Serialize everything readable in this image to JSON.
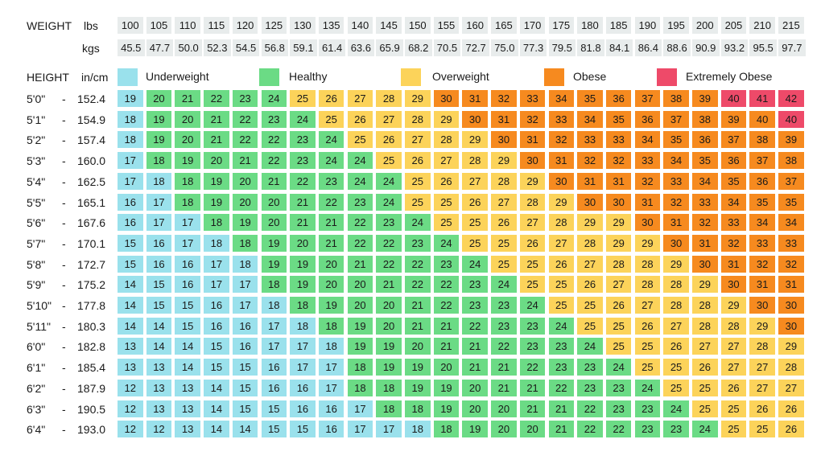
{
  "labels": {
    "weight": "WEIGHT",
    "lbs": "lbs",
    "kgs": "kgs",
    "height": "HEIGHT",
    "in_cm": "in/cm"
  },
  "colors": {
    "Underweight": "#9ae1ec",
    "Healthy": "#6bdb85",
    "Overweight": "#fcd35a",
    "Obese": "#f68a1f",
    "Extremely Obese": "#ee4a69",
    "header_bg": "#e8ecec"
  },
  "chart_data": {
    "type": "table",
    "weights_lbs": [
      "100",
      "105",
      "110",
      "115",
      "120",
      "125",
      "130",
      "135",
      "140",
      "145",
      "150",
      "155",
      "160",
      "165",
      "170",
      "175",
      "180",
      "185",
      "190",
      "195",
      "200",
      "205",
      "210",
      "215"
    ],
    "weights_kgs": [
      "45.5",
      "47.7",
      "50.0",
      "52.3",
      "54.5",
      "56.8",
      "59.1",
      "61.4",
      "63.6",
      "65.9",
      "68.2",
      "70.5",
      "72.7",
      "75.0",
      "77.3",
      "79.5",
      "81.8",
      "84.1",
      "86.4",
      "88.6",
      "90.9",
      "93.2",
      "95.5",
      "97.7"
    ],
    "legend": [
      "Underweight",
      "Healthy",
      "Overweight",
      "Obese",
      "Extremely Obese"
    ],
    "rows": [
      {
        "in": "5'0\"",
        "sep": "-",
        "cm": "152.4",
        "values": [
          19,
          20,
          21,
          22,
          23,
          24,
          25,
          26,
          27,
          28,
          29,
          30,
          31,
          32,
          33,
          34,
          35,
          36,
          37,
          38,
          39,
          40,
          41,
          42
        ],
        "classes": [
          "U",
          "H",
          "H",
          "H",
          "H",
          "H",
          "O",
          "O",
          "O",
          "O",
          "O",
          "B",
          "B",
          "B",
          "B",
          "B",
          "B",
          "B",
          "B",
          "B",
          "B",
          "E",
          "E",
          "E"
        ]
      },
      {
        "in": "5'1\"",
        "sep": "-",
        "cm": "154.9",
        "values": [
          18,
          19,
          20,
          21,
          22,
          23,
          24,
          25,
          26,
          27,
          28,
          29,
          30,
          31,
          32,
          33,
          34,
          35,
          36,
          37,
          38,
          39,
          40,
          40
        ],
        "classes": [
          "U",
          "H",
          "H",
          "H",
          "H",
          "H",
          "H",
          "O",
          "O",
          "O",
          "O",
          "O",
          "B",
          "B",
          "B",
          "B",
          "B",
          "B",
          "B",
          "B",
          "B",
          "B",
          "B",
          "E"
        ]
      },
      {
        "in": "5'2\"",
        "sep": "-",
        "cm": "157.4",
        "values": [
          18,
          19,
          20,
          21,
          22,
          22,
          23,
          24,
          25,
          26,
          27,
          28,
          29,
          30,
          31,
          32,
          33,
          33,
          34,
          35,
          36,
          37,
          38,
          39
        ],
        "classes": [
          "U",
          "H",
          "H",
          "H",
          "H",
          "H",
          "H",
          "H",
          "O",
          "O",
          "O",
          "O",
          "O",
          "B",
          "B",
          "B",
          "B",
          "B",
          "B",
          "B",
          "B",
          "B",
          "B",
          "B"
        ]
      },
      {
        "in": "5'3\"",
        "sep": "-",
        "cm": "160.0",
        "values": [
          17,
          18,
          19,
          20,
          21,
          22,
          23,
          24,
          24,
          25,
          26,
          27,
          28,
          29,
          30,
          31,
          32,
          32,
          33,
          34,
          35,
          36,
          37,
          38
        ],
        "classes": [
          "U",
          "H",
          "H",
          "H",
          "H",
          "H",
          "H",
          "H",
          "H",
          "O",
          "O",
          "O",
          "O",
          "O",
          "B",
          "B",
          "B",
          "B",
          "B",
          "B",
          "B",
          "B",
          "B",
          "B"
        ]
      },
      {
        "in": "5'4\"",
        "sep": "-",
        "cm": "162.5",
        "values": [
          17,
          18,
          18,
          19,
          20,
          21,
          22,
          23,
          24,
          24,
          25,
          26,
          27,
          28,
          29,
          30,
          31,
          31,
          32,
          33,
          34,
          35,
          36,
          37
        ],
        "classes": [
          "U",
          "U",
          "H",
          "H",
          "H",
          "H",
          "H",
          "H",
          "H",
          "H",
          "O",
          "O",
          "O",
          "O",
          "O",
          "B",
          "B",
          "B",
          "B",
          "B",
          "B",
          "B",
          "B",
          "B"
        ]
      },
      {
        "in": "5'5\"",
        "sep": "-",
        "cm": "165.1",
        "values": [
          16,
          17,
          18,
          19,
          20,
          20,
          21,
          22,
          23,
          24,
          25,
          25,
          26,
          27,
          28,
          29,
          30,
          30,
          31,
          32,
          33,
          34,
          35,
          35
        ],
        "classes": [
          "U",
          "U",
          "H",
          "H",
          "H",
          "H",
          "H",
          "H",
          "H",
          "H",
          "O",
          "O",
          "O",
          "O",
          "O",
          "O",
          "B",
          "B",
          "B",
          "B",
          "B",
          "B",
          "B",
          "B"
        ]
      },
      {
        "in": "5'6\"",
        "sep": "-",
        "cm": "167.6",
        "values": [
          16,
          17,
          17,
          18,
          19,
          20,
          21,
          21,
          22,
          23,
          24,
          25,
          25,
          26,
          27,
          28,
          29,
          29,
          30,
          31,
          32,
          33,
          34,
          34
        ],
        "classes": [
          "U",
          "U",
          "U",
          "H",
          "H",
          "H",
          "H",
          "H",
          "H",
          "H",
          "H",
          "O",
          "O",
          "O",
          "O",
          "O",
          "O",
          "O",
          "B",
          "B",
          "B",
          "B",
          "B",
          "B"
        ]
      },
      {
        "in": "5'7\"",
        "sep": "-",
        "cm": "170.1",
        "values": [
          15,
          16,
          17,
          18,
          18,
          19,
          20,
          21,
          22,
          22,
          23,
          24,
          25,
          25,
          26,
          27,
          28,
          29,
          29,
          30,
          31,
          32,
          33,
          33
        ],
        "classes": [
          "U",
          "U",
          "U",
          "U",
          "H",
          "H",
          "H",
          "H",
          "H",
          "H",
          "H",
          "H",
          "O",
          "O",
          "O",
          "O",
          "O",
          "O",
          "O",
          "B",
          "B",
          "B",
          "B",
          "B"
        ]
      },
      {
        "in": "5'8\"",
        "sep": "-",
        "cm": "172.7",
        "values": [
          15,
          16,
          16,
          17,
          18,
          19,
          19,
          20,
          21,
          22,
          22,
          23,
          24,
          25,
          25,
          26,
          27,
          28,
          28,
          29,
          30,
          31,
          32,
          32
        ],
        "classes": [
          "U",
          "U",
          "U",
          "U",
          "U",
          "H",
          "H",
          "H",
          "H",
          "H",
          "H",
          "H",
          "H",
          "O",
          "O",
          "O",
          "O",
          "O",
          "O",
          "O",
          "B",
          "B",
          "B",
          "B"
        ]
      },
      {
        "in": "5'9\"",
        "sep": "-",
        "cm": "175.2",
        "values": [
          14,
          15,
          16,
          17,
          17,
          18,
          19,
          20,
          20,
          21,
          22,
          22,
          23,
          24,
          25,
          25,
          26,
          27,
          28,
          28,
          29,
          30,
          31,
          31
        ],
        "classes": [
          "U",
          "U",
          "U",
          "U",
          "U",
          "H",
          "H",
          "H",
          "H",
          "H",
          "H",
          "H",
          "H",
          "H",
          "O",
          "O",
          "O",
          "O",
          "O",
          "O",
          "O",
          "B",
          "B",
          "B"
        ]
      },
      {
        "in": "5'10\"",
        "sep": "-",
        "cm": "177.8",
        "values": [
          14,
          15,
          15,
          16,
          17,
          18,
          18,
          19,
          20,
          20,
          21,
          22,
          23,
          23,
          24,
          25,
          25,
          26,
          27,
          28,
          28,
          29,
          30,
          30
        ],
        "classes": [
          "U",
          "U",
          "U",
          "U",
          "U",
          "U",
          "H",
          "H",
          "H",
          "H",
          "H",
          "H",
          "H",
          "H",
          "H",
          "O",
          "O",
          "O",
          "O",
          "O",
          "O",
          "O",
          "B",
          "B"
        ]
      },
      {
        "in": "5'11\"",
        "sep": "-",
        "cm": "180.3",
        "values": [
          14,
          14,
          15,
          16,
          16,
          17,
          18,
          18,
          19,
          20,
          21,
          21,
          22,
          23,
          23,
          24,
          25,
          25,
          26,
          27,
          28,
          28,
          29,
          30
        ],
        "classes": [
          "U",
          "U",
          "U",
          "U",
          "U",
          "U",
          "U",
          "H",
          "H",
          "H",
          "H",
          "H",
          "H",
          "H",
          "H",
          "H",
          "O",
          "O",
          "O",
          "O",
          "O",
          "O",
          "O",
          "B"
        ]
      },
      {
        "in": "6'0\"",
        "sep": "-",
        "cm": "182.8",
        "values": [
          13,
          14,
          14,
          15,
          16,
          17,
          17,
          18,
          19,
          19,
          20,
          21,
          21,
          22,
          23,
          23,
          24,
          25,
          25,
          26,
          27,
          27,
          28,
          29
        ],
        "classes": [
          "U",
          "U",
          "U",
          "U",
          "U",
          "U",
          "U",
          "U",
          "H",
          "H",
          "H",
          "H",
          "H",
          "H",
          "H",
          "H",
          "H",
          "O",
          "O",
          "O",
          "O",
          "O",
          "O",
          "O"
        ]
      },
      {
        "in": "6'1\"",
        "sep": "-",
        "cm": "185.4",
        "values": [
          13,
          13,
          14,
          15,
          15,
          16,
          17,
          17,
          18,
          19,
          19,
          20,
          21,
          21,
          22,
          23,
          23,
          24,
          25,
          25,
          26,
          27,
          27,
          28
        ],
        "classes": [
          "U",
          "U",
          "U",
          "U",
          "U",
          "U",
          "U",
          "U",
          "H",
          "H",
          "H",
          "H",
          "H",
          "H",
          "H",
          "H",
          "H",
          "H",
          "O",
          "O",
          "O",
          "O",
          "O",
          "O"
        ]
      },
      {
        "in": "6'2\"",
        "sep": "-",
        "cm": "187.9",
        "values": [
          12,
          13,
          13,
          14,
          15,
          16,
          16,
          17,
          18,
          18,
          19,
          19,
          20,
          21,
          21,
          22,
          23,
          23,
          24,
          25,
          25,
          26,
          27,
          27
        ],
        "classes": [
          "U",
          "U",
          "U",
          "U",
          "U",
          "U",
          "U",
          "U",
          "H",
          "H",
          "H",
          "H",
          "H",
          "H",
          "H",
          "H",
          "H",
          "H",
          "H",
          "O",
          "O",
          "O",
          "O",
          "O"
        ]
      },
      {
        "in": "6'3\"",
        "sep": "-",
        "cm": "190.5",
        "values": [
          12,
          13,
          13,
          14,
          15,
          15,
          16,
          16,
          17,
          18,
          18,
          19,
          20,
          20,
          21,
          21,
          22,
          23,
          23,
          24,
          25,
          25,
          26,
          26
        ],
        "classes": [
          "U",
          "U",
          "U",
          "U",
          "U",
          "U",
          "U",
          "U",
          "U",
          "H",
          "H",
          "H",
          "H",
          "H",
          "H",
          "H",
          "H",
          "H",
          "H",
          "H",
          "O",
          "O",
          "O",
          "O"
        ]
      },
      {
        "in": "6'4\"",
        "sep": "-",
        "cm": "193.0",
        "values": [
          12,
          12,
          13,
          14,
          14,
          15,
          15,
          16,
          17,
          17,
          18,
          18,
          19,
          20,
          20,
          21,
          22,
          22,
          23,
          23,
          24,
          25,
          25,
          26
        ],
        "classes": [
          "U",
          "U",
          "U",
          "U",
          "U",
          "U",
          "U",
          "U",
          "U",
          "U",
          "U",
          "H",
          "H",
          "H",
          "H",
          "H",
          "H",
          "H",
          "H",
          "H",
          "H",
          "O",
          "O",
          "O"
        ]
      }
    ]
  }
}
